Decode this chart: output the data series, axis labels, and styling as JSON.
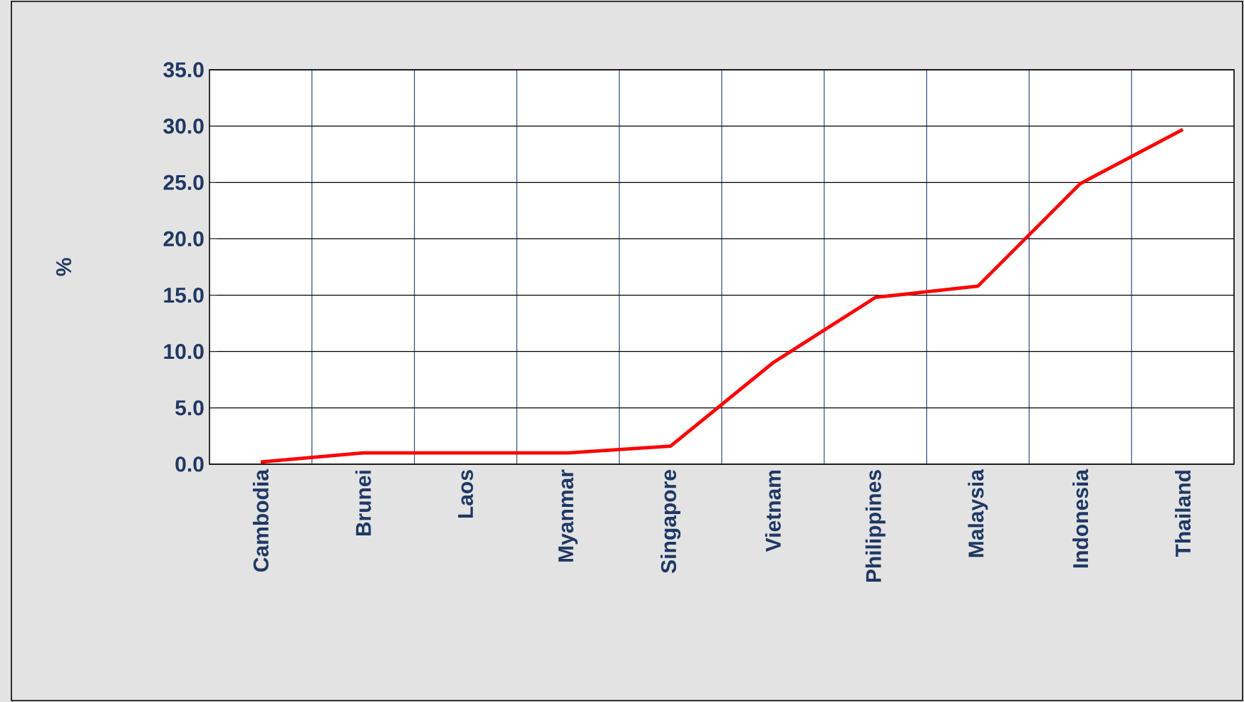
{
  "chart_data": {
    "type": "line",
    "ylabel": "%",
    "categories": [
      "Cambodia",
      "Brunei",
      "Laos",
      "Myanmar",
      "Singapore",
      "Vietnam",
      "Philippines",
      "Malaysia",
      "Indonesia",
      "Thailand"
    ],
    "values": [
      0.2,
      1.0,
      1.0,
      1.0,
      1.6,
      9.0,
      14.8,
      15.8,
      24.9,
      29.7
    ],
    "color": "#ff0000",
    "ylim": [
      0,
      35
    ],
    "yticks": [
      {
        "value": 0,
        "label": "0.0"
      },
      {
        "value": 5,
        "label": "5.0"
      },
      {
        "value": 10,
        "label": "10.0"
      },
      {
        "value": 15,
        "label": "15.0"
      },
      {
        "value": 20,
        "label": "20.0"
      },
      {
        "value": 25,
        "label": "25.0"
      },
      {
        "value": 30,
        "label": "30.0"
      },
      {
        "value": 35,
        "label": "35.0"
      }
    ],
    "grid": true,
    "marker": "none",
    "line_style": "solid"
  }
}
